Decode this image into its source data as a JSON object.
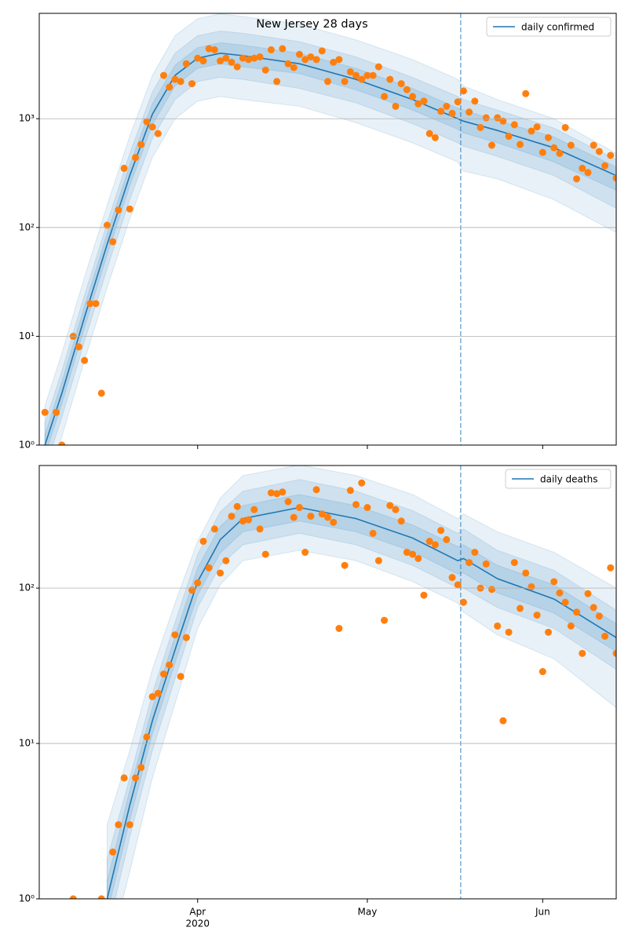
{
  "chart_data": [
    {
      "type": "line",
      "title": "New Jersey 28 days",
      "log_y": true,
      "grid": true,
      "legend": "upper right",
      "xlim": [
        64,
        166
      ],
      "ylim": [
        1,
        9300
      ],
      "yticks": [
        {
          "value": 1,
          "label": "10⁰"
        },
        {
          "value": 10,
          "label": "10¹"
        },
        {
          "value": 100,
          "label": "10²"
        },
        {
          "value": 1000,
          "label": "10³"
        }
      ],
      "xticks": [
        92,
        122,
        153
      ],
      "vlines": [
        138.5
      ],
      "x": [
        65,
        68,
        72,
        76,
        80,
        84,
        88,
        92,
        96,
        100,
        110,
        120,
        130,
        138,
        139,
        145,
        155,
        166
      ],
      "series": [
        {
          "name": "daily confirmed",
          "color": "#1f77b4",
          "values": [
            1,
            3,
            15,
            70,
            300,
            1100,
            2500,
            3600,
            4000,
            3800,
            3200,
            2300,
            1500,
            1000,
            950,
            780,
            540,
            300
          ]
        }
      ],
      "bands": [
        {
          "color": "#1f77b4",
          "opacity": 0.1,
          "upper": [
            2.3,
            7,
            35,
            160,
            690,
            2500,
            5800,
            8300,
            9200,
            8700,
            7400,
            5300,
            3500,
            2300,
            2000,
            1500,
            1000,
            480
          ],
          "lower": [
            0.4,
            1.2,
            6,
            28,
            120,
            440,
            1000,
            1450,
            1600,
            1500,
            1300,
            920,
            600,
            400,
            330,
            280,
            180,
            90
          ]
        },
        {
          "color": "#1f77b4",
          "opacity": 0.12,
          "upper": [
            1.6,
            4.8,
            24,
            110,
            480,
            1760,
            4000,
            5800,
            6400,
            6100,
            5100,
            3700,
            2400,
            1600,
            1500,
            1200,
            820,
            420
          ],
          "lower": [
            0.6,
            1.8,
            9,
            42,
            180,
            660,
            1500,
            2200,
            2400,
            2300,
            1900,
            1400,
            900,
            600,
            560,
            450,
            300,
            150
          ]
        },
        {
          "color": "#1f77b4",
          "opacity": 0.14,
          "upper": [
            1.25,
            3.8,
            19,
            88,
            375,
            1375,
            3100,
            4500,
            5000,
            4750,
            4000,
            2900,
            1900,
            1250,
            1200,
            960,
            680,
            360
          ],
          "lower": [
            0.8,
            2.4,
            12,
            56,
            240,
            880,
            2000,
            2900,
            3200,
            3000,
            2600,
            1840,
            1200,
            800,
            740,
            600,
            400,
            220
          ]
        }
      ],
      "points": {
        "color": "#ff7f0e",
        "x": [
          65,
          66,
          67,
          68,
          69,
          70,
          71,
          72,
          73,
          74,
          75,
          76,
          77,
          78,
          79,
          80,
          81,
          82,
          83,
          84,
          85,
          86,
          87,
          88,
          89,
          90,
          91,
          92,
          93,
          94,
          95,
          96,
          97,
          98,
          99,
          100,
          101,
          102,
          103,
          104,
          105,
          106,
          107,
          108,
          109,
          110,
          111,
          112,
          113,
          114,
          115,
          116,
          117,
          118,
          119,
          120,
          121,
          122,
          123,
          124,
          125,
          126,
          127,
          128,
          129,
          130,
          131,
          132,
          133,
          134,
          135,
          136,
          137,
          138,
          139,
          140,
          141,
          142,
          143,
          144,
          145,
          146,
          147,
          148,
          149,
          150,
          151,
          152,
          153,
          154,
          155,
          156,
          157,
          158,
          159,
          160,
          161,
          162,
          163,
          164,
          165,
          166
        ],
        "values": [
          2,
          null,
          2,
          1,
          null,
          10,
          8,
          6,
          20,
          20,
          3,
          105,
          74,
          145,
          350,
          148,
          440,
          580,
          940,
          840,
          730,
          2500,
          1950,
          2300,
          2200,
          3200,
          2100,
          3600,
          3400,
          4400,
          4300,
          3400,
          3600,
          3300,
          3000,
          3600,
          3500,
          3600,
          3700,
          2800,
          4300,
          2200,
          4400,
          3200,
          2950,
          3900,
          3500,
          3700,
          3500,
          4200,
          2200,
          3300,
          3500,
          2200,
          2700,
          2500,
          2300,
          2500,
          2500,
          3000,
          1600,
          2300,
          1300,
          2100,
          1850,
          1600,
          1370,
          1450,
          730,
          670,
          1170,
          1300,
          1120,
          1430,
          1800,
          1150,
          1450,
          830,
          1020,
          570,
          1020,
          950,
          690,
          880,
          580,
          1700,
          770,
          840,
          490,
          670,
          540,
          480,
          830,
          570,
          280,
          350,
          320,
          570,
          500,
          370,
          460,
          285
        ]
      }
    },
    {
      "type": "line",
      "log_y": true,
      "grid": true,
      "legend": "upper right",
      "xlim": [
        64,
        166
      ],
      "ylim": [
        1,
        615
      ],
      "yticks": [
        {
          "value": 1,
          "label": "10⁰"
        },
        {
          "value": 10,
          "label": "10¹"
        },
        {
          "value": 100,
          "label": "10²"
        }
      ],
      "xticks": [
        {
          "value": 92,
          "label": "Apr"
        },
        {
          "value": 122,
          "label": "May"
        },
        {
          "value": 153,
          "label": "Jun"
        }
      ],
      "year_label": "2020",
      "vlines": [
        138.5
      ],
      "x": [
        65,
        68,
        72,
        76,
        80,
        84,
        88,
        92,
        96,
        100,
        110,
        120,
        130,
        138,
        139,
        145,
        155,
        166
      ],
      "series": [
        {
          "name": "daily deaths",
          "color": "#1f77b4",
          "values": [
            null,
            null,
            null,
            1,
            4,
            14,
            40,
            110,
            205,
            280,
            330,
            280,
            210,
            150,
            155,
            115,
            85,
            48
          ]
        }
      ],
      "bands": [
        {
          "color": "#1f77b4",
          "opacity": 0.1,
          "upper": [
            null,
            null,
            null,
            3,
            9,
            30,
            80,
            200,
            380,
            530,
            620,
            530,
            400,
            280,
            300,
            230,
            170,
            100
          ],
          "lower": [
            null,
            null,
            null,
            0.4,
            1.5,
            6,
            18,
            55,
            105,
            150,
            175,
            150,
            110,
            80,
            70,
            50,
            35,
            17
          ]
        },
        {
          "color": "#1f77b4",
          "opacity": 0.12,
          "upper": [
            null,
            null,
            null,
            1.8,
            6,
            21,
            60,
            165,
            310,
            420,
            500,
            420,
            315,
            225,
            240,
            175,
            130,
            72
          ],
          "lower": [
            null,
            null,
            null,
            0.6,
            2.5,
            9,
            26,
            75,
            140,
            190,
            225,
            190,
            140,
            100,
            100,
            75,
            55,
            30
          ]
        },
        {
          "color": "#1f77b4",
          "opacity": 0.14,
          "upper": [
            null,
            null,
            null,
            1.3,
            5,
            17,
            49,
            135,
            250,
            340,
            400,
            340,
            255,
            185,
            190,
            140,
            105,
            59
          ],
          "lower": [
            null,
            null,
            null,
            0.8,
            3.2,
            11.5,
            33,
            90,
            168,
            230,
            270,
            230,
            172,
            123,
            125,
            93,
            69,
            39
          ]
        }
      ],
      "points": {
        "color": "#ff7f0e",
        "x": [
          65,
          66,
          67,
          68,
          69,
          70,
          71,
          72,
          73,
          74,
          75,
          76,
          77,
          78,
          79,
          80,
          81,
          82,
          83,
          84,
          85,
          86,
          87,
          88,
          89,
          90,
          91,
          92,
          93,
          94,
          95,
          96,
          97,
          98,
          99,
          100,
          101,
          102,
          103,
          104,
          105,
          106,
          107,
          108,
          109,
          110,
          111,
          112,
          113,
          114,
          115,
          116,
          117,
          118,
          119,
          120,
          121,
          122,
          123,
          124,
          125,
          126,
          127,
          128,
          129,
          130,
          131,
          132,
          133,
          134,
          135,
          136,
          137,
          138,
          139,
          140,
          141,
          142,
          143,
          144,
          145,
          146,
          147,
          148,
          149,
          150,
          151,
          152,
          153,
          154,
          155,
          156,
          157,
          158,
          159,
          160,
          161,
          162,
          163,
          164,
          165,
          166
        ],
        "values": [
          null,
          null,
          null,
          null,
          null,
          1,
          null,
          null,
          null,
          null,
          1,
          null,
          2,
          3,
          6,
          3,
          6,
          7,
          11,
          20,
          21,
          28,
          32,
          50,
          27,
          48,
          97,
          108,
          200,
          135,
          240,
          125,
          150,
          290,
          335,
          270,
          275,
          320,
          240,
          165,
          410,
          405,
          415,
          360,
          285,
          330,
          170,
          290,
          430,
          300,
          285,
          265,
          55,
          140,
          425,
          345,
          475,
          330,
          225,
          150,
          62,
          340,
          320,
          270,
          170,
          165,
          155,
          90,
          200,
          190,
          235,
          205,
          117,
          105,
          81,
          146,
          170,
          100,
          143,
          98,
          57,
          14,
          52,
          146,
          74,
          125,
          102,
          67,
          29,
          52,
          110,
          93,
          81,
          57,
          70,
          38,
          92,
          75,
          66,
          49,
          135,
          38
        ]
      }
    }
  ]
}
